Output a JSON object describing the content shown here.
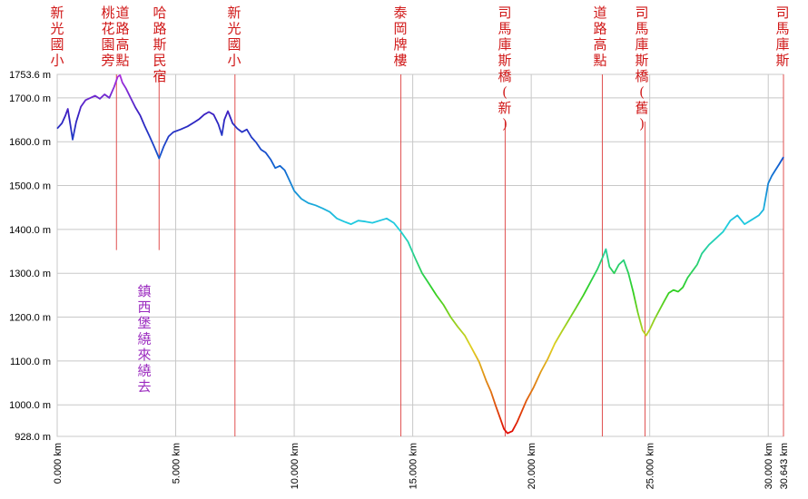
{
  "chart_data": {
    "type": "line",
    "title": "",
    "xlabel": "",
    "ylabel": "",
    "xlim": [
      0,
      30.643
    ],
    "ylim": [
      928,
      1753.6
    ],
    "grid": true,
    "y_ticks": [
      {
        "value": 928,
        "label": "928.0 m"
      },
      {
        "value": 1000,
        "label": "1000.0 m"
      },
      {
        "value": 1100,
        "label": "1100.0 m"
      },
      {
        "value": 1200,
        "label": "1200.0 m"
      },
      {
        "value": 1300,
        "label": "1300.0 m"
      },
      {
        "value": 1400,
        "label": "1400.0 m"
      },
      {
        "value": 1500,
        "label": "1500.0 m"
      },
      {
        "value": 1600,
        "label": "1600.0 m"
      },
      {
        "value": 1700,
        "label": "1700.0 m"
      },
      {
        "value": 1753.6,
        "label": "1753.6 m"
      }
    ],
    "x_ticks": [
      {
        "value": 0,
        "label": "0.000 km"
      },
      {
        "value": 5,
        "label": "5.000 km"
      },
      {
        "value": 10,
        "label": "10.000 km"
      },
      {
        "value": 15,
        "label": "15.000 km"
      },
      {
        "value": 20,
        "label": "20.000 km"
      },
      {
        "value": 25,
        "label": "25.000 km"
      },
      {
        "value": 30,
        "label": "30.000 km"
      },
      {
        "value": 30.643,
        "label": "30.643 km"
      }
    ],
    "series": [
      {
        "points": [
          [
            0.0,
            1630
          ],
          [
            0.2,
            1642
          ],
          [
            0.35,
            1660
          ],
          [
            0.45,
            1675
          ],
          [
            0.55,
            1640
          ],
          [
            0.65,
            1605
          ],
          [
            0.8,
            1645
          ],
          [
            1.0,
            1680
          ],
          [
            1.2,
            1695
          ],
          [
            1.4,
            1700
          ],
          [
            1.6,
            1705
          ],
          [
            1.8,
            1698
          ],
          [
            2.0,
            1708
          ],
          [
            2.2,
            1700
          ],
          [
            2.4,
            1725
          ],
          [
            2.55,
            1748
          ],
          [
            2.65,
            1752
          ],
          [
            2.75,
            1735
          ],
          [
            2.9,
            1722
          ],
          [
            3.1,
            1700
          ],
          [
            3.3,
            1678
          ],
          [
            3.5,
            1660
          ],
          [
            3.7,
            1635
          ],
          [
            3.9,
            1612
          ],
          [
            4.1,
            1588
          ],
          [
            4.3,
            1562
          ],
          [
            4.5,
            1590
          ],
          [
            4.7,
            1612
          ],
          [
            4.9,
            1622
          ],
          [
            5.2,
            1628
          ],
          [
            5.5,
            1635
          ],
          [
            5.8,
            1645
          ],
          [
            6.0,
            1652
          ],
          [
            6.2,
            1662
          ],
          [
            6.4,
            1668
          ],
          [
            6.6,
            1662
          ],
          [
            6.8,
            1640
          ],
          [
            6.95,
            1615
          ],
          [
            7.05,
            1650
          ],
          [
            7.2,
            1670
          ],
          [
            7.4,
            1642
          ],
          [
            7.6,
            1630
          ],
          [
            7.8,
            1622
          ],
          [
            8.0,
            1628
          ],
          [
            8.2,
            1610
          ],
          [
            8.4,
            1598
          ],
          [
            8.6,
            1582
          ],
          [
            8.8,
            1575
          ],
          [
            9.0,
            1560
          ],
          [
            9.2,
            1540
          ],
          [
            9.4,
            1545
          ],
          [
            9.6,
            1535
          ],
          [
            9.8,
            1512
          ],
          [
            10.0,
            1488
          ],
          [
            10.3,
            1470
          ],
          [
            10.6,
            1460
          ],
          [
            10.9,
            1455
          ],
          [
            11.2,
            1448
          ],
          [
            11.5,
            1440
          ],
          [
            11.8,
            1425
          ],
          [
            12.1,
            1418
          ],
          [
            12.4,
            1412
          ],
          [
            12.7,
            1420
          ],
          [
            13.0,
            1418
          ],
          [
            13.3,
            1415
          ],
          [
            13.6,
            1420
          ],
          [
            13.9,
            1425
          ],
          [
            14.2,
            1415
          ],
          [
            14.5,
            1395
          ],
          [
            14.8,
            1372
          ],
          [
            15.1,
            1335
          ],
          [
            15.4,
            1300
          ],
          [
            15.7,
            1275
          ],
          [
            16.0,
            1250
          ],
          [
            16.3,
            1228
          ],
          [
            16.6,
            1200
          ],
          [
            16.9,
            1178
          ],
          [
            17.2,
            1158
          ],
          [
            17.5,
            1128
          ],
          [
            17.8,
            1098
          ],
          [
            18.1,
            1055
          ],
          [
            18.3,
            1030
          ],
          [
            18.5,
            998
          ],
          [
            18.7,
            968
          ],
          [
            18.85,
            945
          ],
          [
            19.0,
            935
          ],
          [
            19.2,
            940
          ],
          [
            19.4,
            960
          ],
          [
            19.6,
            985
          ],
          [
            19.8,
            1010
          ],
          [
            20.1,
            1040
          ],
          [
            20.4,
            1075
          ],
          [
            20.7,
            1105
          ],
          [
            21.0,
            1140
          ],
          [
            21.3,
            1168
          ],
          [
            21.6,
            1195
          ],
          [
            21.9,
            1222
          ],
          [
            22.2,
            1250
          ],
          [
            22.5,
            1280
          ],
          [
            22.8,
            1310
          ],
          [
            23.0,
            1335
          ],
          [
            23.15,
            1355
          ],
          [
            23.3,
            1315
          ],
          [
            23.5,
            1300
          ],
          [
            23.7,
            1320
          ],
          [
            23.9,
            1330
          ],
          [
            24.1,
            1300
          ],
          [
            24.3,
            1258
          ],
          [
            24.5,
            1210
          ],
          [
            24.7,
            1170
          ],
          [
            24.85,
            1158
          ],
          [
            25.0,
            1172
          ],
          [
            25.2,
            1195
          ],
          [
            25.4,
            1215
          ],
          [
            25.6,
            1235
          ],
          [
            25.8,
            1255
          ],
          [
            26.0,
            1262
          ],
          [
            26.2,
            1258
          ],
          [
            26.4,
            1268
          ],
          [
            26.6,
            1290
          ],
          [
            26.8,
            1305
          ],
          [
            27.0,
            1320
          ],
          [
            27.2,
            1345
          ],
          [
            27.5,
            1365
          ],
          [
            27.8,
            1380
          ],
          [
            28.1,
            1395
          ],
          [
            28.4,
            1420
          ],
          [
            28.7,
            1432
          ],
          [
            29.0,
            1412
          ],
          [
            29.3,
            1422
          ],
          [
            29.6,
            1432
          ],
          [
            29.8,
            1445
          ],
          [
            30.0,
            1505
          ],
          [
            30.15,
            1522
          ],
          [
            30.3,
            1535
          ],
          [
            30.45,
            1548
          ],
          [
            30.643,
            1565
          ]
        ]
      }
    ],
    "waypoints": [
      {
        "km": 0.0,
        "label": "新光國小",
        "line_top": 1753.6
      },
      {
        "km": 2.5,
        "label": "桃花園旁",
        "line_top": 1353
      },
      {
        "km": 2.5,
        "label": "道路高點",
        "line_top": 1353
      },
      {
        "km": 4.3,
        "label": "哈路斯民宿",
        "line_top": 1353
      },
      {
        "km": 7.5,
        "label": "新光國小",
        "line_top": 928
      },
      {
        "km": 14.5,
        "label": "泰岡牌樓",
        "line_top": 928
      },
      {
        "km": 18.9,
        "label": "司馬庫斯橋(新)",
        "line_top": 928
      },
      {
        "km": 23.0,
        "label": "道路高點",
        "line_top": 928
      },
      {
        "km": 24.8,
        "label": "司馬庫斯橋(舊)",
        "line_top": 928
      },
      {
        "km": 30.643,
        "label": "司馬庫斯",
        "line_top": 928
      }
    ],
    "annotations": [
      {
        "text": "鎮西堡繞來繞去"
      }
    ]
  }
}
